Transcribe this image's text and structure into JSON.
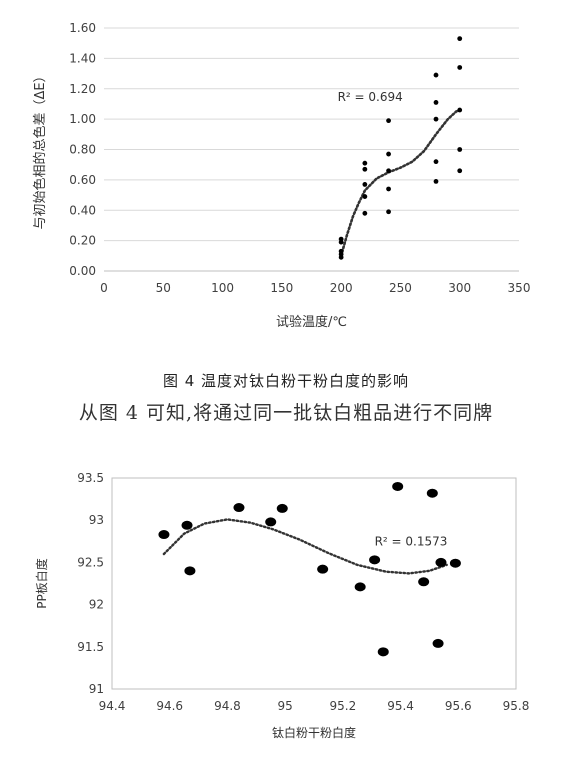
{
  "chart_data": [
    {
      "type": "scatter",
      "title": "",
      "xlabel": "试验温度/℃",
      "ylabel": "与初始色相的总色差（ΔE）",
      "xlim": [
        0,
        350
      ],
      "ylim": [
        0,
        1.6
      ],
      "x_ticks": [
        "0",
        "50",
        "100",
        "150",
        "200",
        "250",
        "300",
        "350"
      ],
      "y_ticks": [
        "0.00",
        "0.20",
        "0.40",
        "0.60",
        "0.80",
        "1.00",
        "1.20",
        "1.40",
        "1.60"
      ],
      "grid": "horizontal",
      "annotation": "R² = 0.694",
      "trendline": "polynomial",
      "points": [
        {
          "x": 200,
          "y": 0.09
        },
        {
          "x": 200,
          "y": 0.11
        },
        {
          "x": 200,
          "y": 0.13
        },
        {
          "x": 200,
          "y": 0.19
        },
        {
          "x": 200,
          "y": 0.21
        },
        {
          "x": 220,
          "y": 0.38
        },
        {
          "x": 220,
          "y": 0.49
        },
        {
          "x": 220,
          "y": 0.57
        },
        {
          "x": 220,
          "y": 0.67
        },
        {
          "x": 220,
          "y": 0.71
        },
        {
          "x": 240,
          "y": 0.39
        },
        {
          "x": 240,
          "y": 0.54
        },
        {
          "x": 240,
          "y": 0.66
        },
        {
          "x": 240,
          "y": 0.77
        },
        {
          "x": 240,
          "y": 0.99
        },
        {
          "x": 280,
          "y": 0.59
        },
        {
          "x": 280,
          "y": 0.72
        },
        {
          "x": 280,
          "y": 1.0
        },
        {
          "x": 280,
          "y": 1.11
        },
        {
          "x": 280,
          "y": 1.29
        },
        {
          "x": 300,
          "y": 0.66
        },
        {
          "x": 300,
          "y": 0.8
        },
        {
          "x": 300,
          "y": 1.06
        },
        {
          "x": 300,
          "y": 1.34
        },
        {
          "x": 300,
          "y": 1.53
        }
      ],
      "trend_points": [
        {
          "x": 200,
          "y": 0.1
        },
        {
          "x": 205,
          "y": 0.24
        },
        {
          "x": 210,
          "y": 0.36
        },
        {
          "x": 215,
          "y": 0.45
        },
        {
          "x": 220,
          "y": 0.53
        },
        {
          "x": 230,
          "y": 0.61
        },
        {
          "x": 240,
          "y": 0.65
        },
        {
          "x": 250,
          "y": 0.68
        },
        {
          "x": 260,
          "y": 0.72
        },
        {
          "x": 270,
          "y": 0.79
        },
        {
          "x": 280,
          "y": 0.9
        },
        {
          "x": 290,
          "y": 1.0
        },
        {
          "x": 297,
          "y": 1.05
        },
        {
          "x": 300,
          "y": 1.06
        }
      ]
    },
    {
      "type": "scatter",
      "title": "",
      "xlabel": "钛白粉干粉白度",
      "ylabel": "PP板白度",
      "xlim": [
        94.4,
        95.8
      ],
      "ylim": [
        91,
        93.5
      ],
      "x_ticks": [
        "94.4",
        "94.6",
        "94.8",
        "95",
        "95.2",
        "95.4",
        "95.6",
        "95.8"
      ],
      "y_ticks": [
        "91",
        "91.5",
        "92",
        "92.5",
        "93",
        "93.5"
      ],
      "grid": "none",
      "annotation": "R² = 0.1573",
      "trendline": "polynomial",
      "points": [
        {
          "x": 94.58,
          "y": 92.83
        },
        {
          "x": 94.66,
          "y": 92.94
        },
        {
          "x": 94.67,
          "y": 92.4
        },
        {
          "x": 94.84,
          "y": 93.15
        },
        {
          "x": 94.95,
          "y": 92.98
        },
        {
          "x": 94.99,
          "y": 93.14
        },
        {
          "x": 95.13,
          "y": 92.42
        },
        {
          "x": 95.26,
          "y": 92.21
        },
        {
          "x": 95.31,
          "y": 92.53
        },
        {
          "x": 95.34,
          "y": 91.44
        },
        {
          "x": 95.39,
          "y": 93.4
        },
        {
          "x": 95.48,
          "y": 92.27
        },
        {
          "x": 95.51,
          "y": 93.32
        },
        {
          "x": 95.53,
          "y": 91.54
        },
        {
          "x": 95.54,
          "y": 92.5
        },
        {
          "x": 95.59,
          "y": 92.49
        }
      ],
      "trend_points": [
        {
          "x": 94.58,
          "y": 92.6
        },
        {
          "x": 94.65,
          "y": 92.84
        },
        {
          "x": 94.72,
          "y": 92.96
        },
        {
          "x": 94.8,
          "y": 93.01
        },
        {
          "x": 94.88,
          "y": 92.97
        },
        {
          "x": 94.96,
          "y": 92.89
        },
        {
          "x": 95.05,
          "y": 92.77
        },
        {
          "x": 95.15,
          "y": 92.61
        },
        {
          "x": 95.25,
          "y": 92.47
        },
        {
          "x": 95.35,
          "y": 92.39
        },
        {
          "x": 95.43,
          "y": 92.37
        },
        {
          "x": 95.5,
          "y": 92.4
        },
        {
          "x": 95.56,
          "y": 92.47
        }
      ]
    }
  ],
  "texts": {
    "figure4_caption": "图 4   温度对钛白粉干粉白度的影响",
    "body_line": "从图 4 可知,将通过同一批钛白粗品进行不同牌"
  }
}
